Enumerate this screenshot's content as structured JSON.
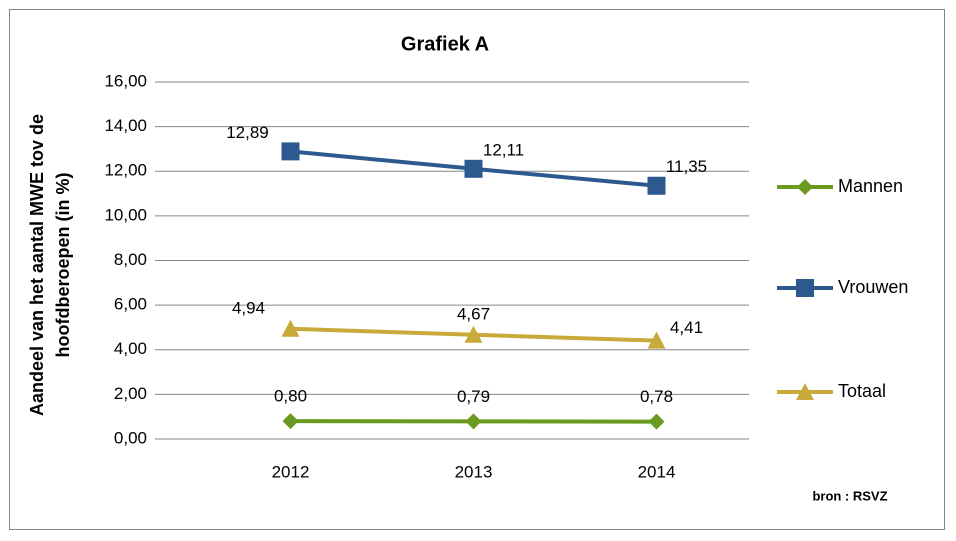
{
  "chart_data": {
    "type": "line",
    "title": "Grafiek A",
    "y_label": [
      "Aandeel van het aantal MWE tov de",
      "hoofdberoepen (in %)"
    ],
    "source": "bron : RSVZ",
    "categories": [
      "2012",
      "2013",
      "2014"
    ],
    "series": [
      {
        "name": "Mannen",
        "color": "#6a9a1f",
        "marker": "diamond",
        "values": [
          0.8,
          0.79,
          0.78
        ],
        "value_labels": [
          "0,80",
          "0,79",
          "0,78"
        ]
      },
      {
        "name": "Vrouwen",
        "color": "#2c5a8e",
        "marker": "square",
        "values": [
          12.89,
          12.11,
          11.35
        ],
        "value_labels": [
          "12,89",
          "12,11",
          "11,35"
        ]
      },
      {
        "name": "Totaal",
        "color": "#c9a93a",
        "marker": "triangle",
        "values": [
          4.94,
          4.67,
          4.41
        ],
        "value_labels": [
          "4,94",
          "4,67",
          "4,41"
        ]
      }
    ],
    "ylim": [
      0,
      16
    ],
    "yticks": [
      {
        "value": 0,
        "label": "0,00"
      },
      {
        "value": 2,
        "label": "2,00"
      },
      {
        "value": 4,
        "label": "4,00"
      },
      {
        "value": 6,
        "label": "6,00"
      },
      {
        "value": 8,
        "label": "8,00"
      },
      {
        "value": 10,
        "label": "10,00"
      },
      {
        "value": 12,
        "label": "12,00"
      },
      {
        "value": 14,
        "label": "14,00"
      },
      {
        "value": 16,
        "label": "16,00"
      }
    ],
    "grid": true,
    "legend": "right"
  }
}
